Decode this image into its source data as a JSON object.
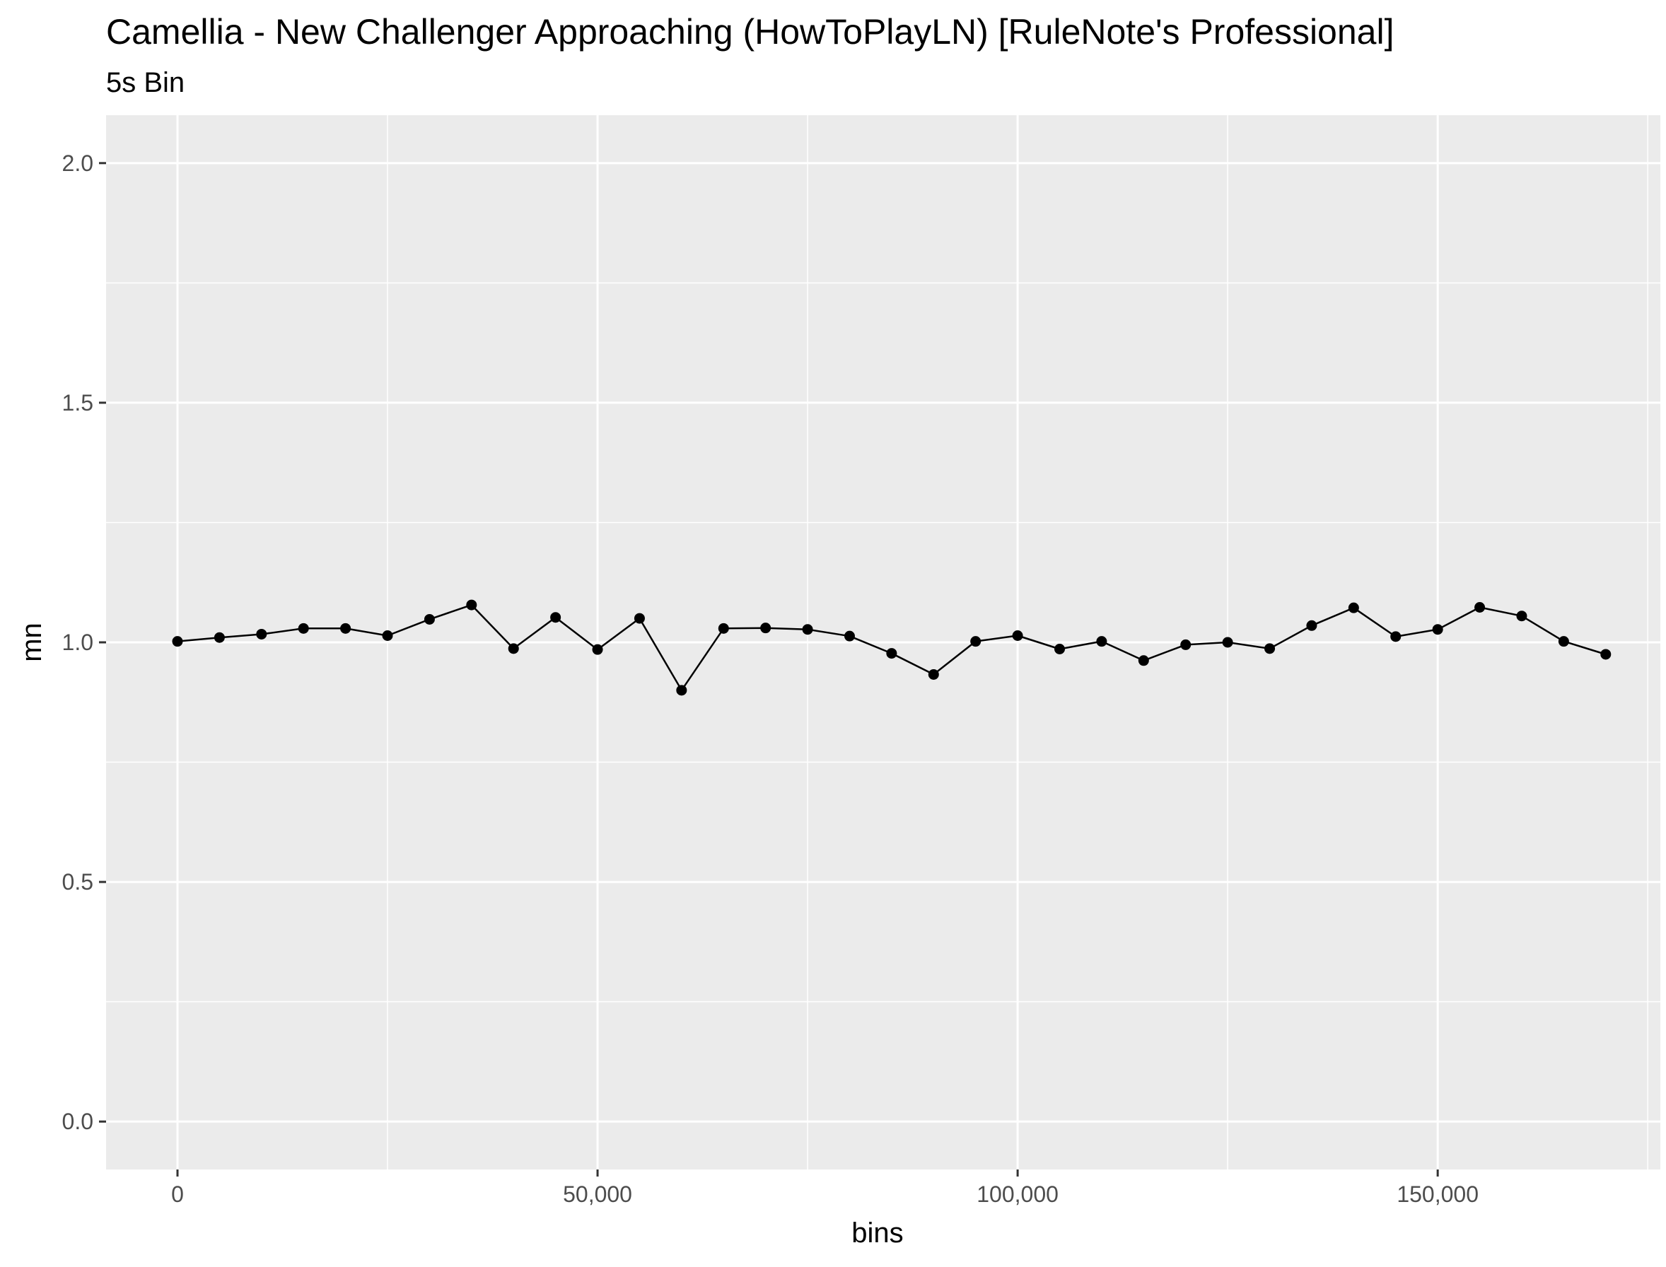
{
  "chart_data": {
    "type": "line",
    "title": "Camellia - New Challenger Approaching (HowToPlayLN) [RuleNote's Professional]",
    "subtitle": "5s Bin",
    "xlabel": "bins",
    "ylabel": "mn",
    "xlim": [
      -8500,
      176500
    ],
    "ylim": [
      -0.1,
      2.1
    ],
    "x_ticks": [
      0,
      50000,
      100000,
      150000
    ],
    "x_tick_labels": [
      "0",
      "50,000",
      "100,000",
      "150,000"
    ],
    "y_ticks": [
      0.0,
      0.5,
      1.0,
      1.5,
      2.0
    ],
    "y_tick_labels": [
      "0.0",
      "0.5",
      "1.0",
      "1.5",
      "2.0"
    ],
    "grid": true,
    "colors": {
      "panel": "#ebebeb",
      "grid": "#ffffff",
      "line": "#000000",
      "point": "#000000"
    },
    "series": [
      {
        "x": [
          0,
          5000,
          10000,
          15000,
          20000,
          25000,
          30000,
          35000,
          40000,
          45000,
          50000,
          55000,
          60000,
          65000,
          70000,
          75000,
          80000,
          85000,
          90000,
          95000,
          100000,
          105000,
          110000,
          115000,
          120000,
          125000,
          130000,
          135000,
          140000,
          145000,
          150000,
          155000,
          160000,
          165000,
          170000
        ],
        "values": [
          1.002,
          1.01,
          1.017,
          1.029,
          1.029,
          1.014,
          1.048,
          1.078,
          0.987,
          1.052,
          0.985,
          1.05,
          0.9,
          1.029,
          1.03,
          1.027,
          1.013,
          0.977,
          0.933,
          1.002,
          1.014,
          0.986,
          1.002,
          0.962,
          0.995,
          1.0,
          0.987,
          1.035,
          1.072,
          1.012,
          1.027,
          1.073,
          1.055,
          1.002,
          0.975
        ]
      }
    ]
  }
}
